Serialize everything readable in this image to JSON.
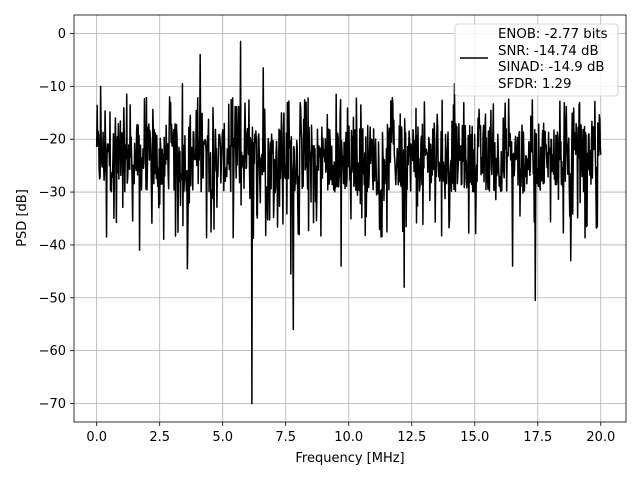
{
  "chart_data": {
    "type": "line",
    "title": "",
    "xlabel": "Frequency [MHz]",
    "ylabel": "PSD [dB]",
    "xlim": [
      -0.9,
      21
    ],
    "ylim": [
      -73.5,
      3.5
    ],
    "xticks": [
      0.0,
      2.5,
      5.0,
      7.5,
      10.0,
      12.5,
      15.0,
      17.5,
      20.0
    ],
    "xtick_labels": [
      "0.0",
      "2.5",
      "5.0",
      "7.5",
      "10.0",
      "12.5",
      "15.0",
      "17.5",
      "20.0"
    ],
    "yticks": [
      0,
      -10,
      -20,
      -30,
      -40,
      -50,
      -60,
      -70
    ],
    "ytick_labels": [
      "0",
      "−10",
      "−20",
      "−30",
      "−40",
      "−50",
      "−60",
      "−70"
    ],
    "grid": true,
    "line_color": "#000000",
    "legend_placement": "top-right",
    "legend": [
      "ENOB: -2.77 bits",
      "SNR: -14.74 dB",
      "SINAD: -14.9 dB",
      "SFDR: 1.29"
    ],
    "baseline_band_db": [
      -30,
      -17
    ],
    "num_points": 1024,
    "peaks": [
      {
        "x": 4.1,
        "y": -4
      },
      {
        "x": 5.7,
        "y": -1.5
      },
      {
        "x": 6.6,
        "y": -6.5
      },
      {
        "x": 3.4,
        "y": -9.5
      },
      {
        "x": 2.9,
        "y": -12
      },
      {
        "x": 1.2,
        "y": -11.5
      },
      {
        "x": 14.2,
        "y": -9.5
      },
      {
        "x": 9.5,
        "y": -11.5
      },
      {
        "x": 12.2,
        "y": -12.5
      },
      {
        "x": 0.15,
        "y": -10
      }
    ],
    "dips": [
      {
        "x": 6.15,
        "y": -70
      },
      {
        "x": 7.8,
        "y": -56
      },
      {
        "x": 7.7,
        "y": -45.5
      },
      {
        "x": 17.4,
        "y": -50.5
      },
      {
        "x": 12.2,
        "y": -48
      },
      {
        "x": 3.6,
        "y": -44.5
      },
      {
        "x": 9.7,
        "y": -44
      },
      {
        "x": 16.5,
        "y": -44
      },
      {
        "x": 0.4,
        "y": -38.5
      },
      {
        "x": 1.7,
        "y": -41
      },
      {
        "x": 18.8,
        "y": -43
      }
    ]
  }
}
